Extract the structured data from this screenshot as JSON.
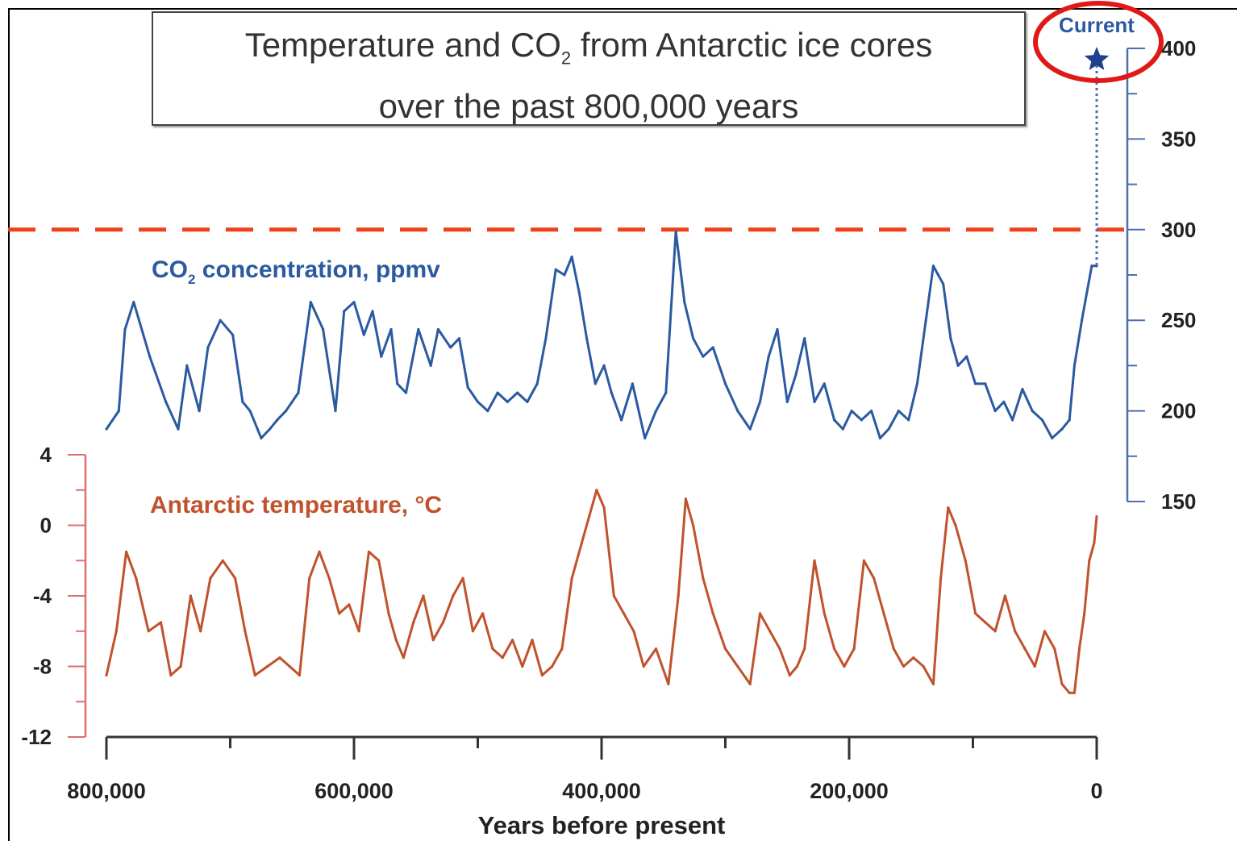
{
  "chart_data": {
    "type": "line",
    "title_line1": "Temperature and CO",
    "title_sub": "2",
    "title_line1_rest": " from Antarctic ice cores",
    "title_line2": "over the past 800,000 years",
    "xlabel": "Years before present",
    "x_ticks": [
      "800,000",
      "600,000",
      "400,000",
      "200,000",
      "0"
    ],
    "x_tick_values": [
      800000,
      600000,
      400000,
      200000,
      0
    ],
    "xlim": [
      800000,
      0
    ],
    "co2_label": "CO",
    "co2_label_sub": "2",
    "co2_label_rest": " concentration, ppmv",
    "temp_label": "Antarctic temperature, °C",
    "current_label": "Current",
    "current_value": 400,
    "y_right_ticks": [
      "400",
      "350",
      "300",
      "250",
      "200",
      "150"
    ],
    "y_right_values": [
      400,
      350,
      300,
      250,
      200,
      150
    ],
    "y_right_lim": [
      150,
      400
    ],
    "y_left_ticks": [
      "4",
      "0",
      "-4",
      "-8",
      "-12"
    ],
    "y_left_values": [
      4,
      0,
      -4,
      -8,
      -12
    ],
    "y_left_lim": [
      -12,
      4
    ],
    "threshold_line_value": 300,
    "series": [
      {
        "name": "CO2 concentration, ppmv",
        "x": [
          800000,
          790000,
          785000,
          778000,
          765000,
          752000,
          742000,
          735000,
          725000,
          718000,
          708000,
          698000,
          690000,
          684000,
          675000,
          668000,
          662000,
          655000,
          645000,
          635000,
          625000,
          615000,
          608000,
          600000,
          592000,
          585000,
          578000,
          570000,
          565000,
          558000,
          548000,
          538000,
          532000,
          522000,
          515000,
          508000,
          500000,
          492000,
          484000,
          476000,
          468000,
          460000,
          452000,
          445000,
          437000,
          430000,
          424000,
          418000,
          412000,
          405000,
          398000,
          392000,
          384000,
          375000,
          365000,
          356000,
          348000,
          340000,
          333000,
          326000,
          318000,
          310000,
          300000,
          290000,
          280000,
          272000,
          265000,
          258000,
          250000,
          243000,
          236000,
          228000,
          220000,
          212000,
          205000,
          198000,
          190000,
          182000,
          175000,
          168000,
          160000,
          152000,
          145000,
          138000,
          132000,
          128000,
          124000,
          118000,
          112000,
          105000,
          98000,
          90000,
          82000,
          75000,
          68000,
          60000,
          52000,
          44000,
          36000,
          28000,
          22000,
          18000,
          12000,
          8000,
          4000,
          0
        ],
        "values": [
          190,
          200,
          245,
          260,
          230,
          205,
          190,
          225,
          200,
          235,
          250,
          242,
          205,
          200,
          185,
          190,
          195,
          200,
          210,
          260,
          245,
          200,
          255,
          260,
          242,
          255,
          230,
          245,
          215,
          210,
          245,
          225,
          245,
          235,
          240,
          213,
          205,
          200,
          210,
          205,
          210,
          205,
          215,
          240,
          278,
          275,
          285,
          265,
          240,
          215,
          225,
          210,
          195,
          215,
          185,
          200,
          210,
          299,
          260,
          240,
          230,
          235,
          215,
          200,
          190,
          205,
          230,
          245,
          205,
          220,
          240,
          205,
          215,
          195,
          190,
          200,
          195,
          200,
          185,
          190,
          200,
          195,
          215,
          250,
          280,
          275,
          270,
          240,
          225,
          230,
          215,
          215,
          200,
          205,
          195,
          212,
          200,
          195,
          185,
          190,
          195,
          225,
          250,
          265,
          280,
          280
        ]
      },
      {
        "name": "Antarctic temperature, °C",
        "x": [
          800000,
          792000,
          784000,
          776000,
          766000,
          756000,
          748000,
          740000,
          732000,
          724000,
          716000,
          706000,
          696000,
          688000,
          680000,
          670000,
          660000,
          652000,
          644000,
          636000,
          628000,
          620000,
          612000,
          604000,
          596000,
          588000,
          580000,
          572000,
          566000,
          560000,
          552000,
          544000,
          536000,
          528000,
          520000,
          512000,
          504000,
          496000,
          488000,
          480000,
          472000,
          464000,
          456000,
          448000,
          440000,
          432000,
          424000,
          416000,
          410000,
          404000,
          398000,
          390000,
          382000,
          374000,
          366000,
          356000,
          346000,
          338000,
          332000,
          326000,
          318000,
          310000,
          300000,
          290000,
          280000,
          272000,
          264000,
          256000,
          248000,
          242000,
          236000,
          228000,
          220000,
          212000,
          204000,
          196000,
          188000,
          180000,
          172000,
          164000,
          156000,
          148000,
          140000,
          132000,
          126000,
          120000,
          114000,
          106000,
          98000,
          90000,
          82000,
          74000,
          66000,
          58000,
          50000,
          42000,
          34000,
          28000,
          22000,
          18000,
          14000,
          10000,
          6000,
          2000,
          0
        ],
        "values": [
          -8.5,
          -6,
          -1.5,
          -3,
          -6,
          -5.5,
          -8.5,
          -8,
          -4,
          -6,
          -3,
          -2,
          -3,
          -6,
          -8.5,
          -8,
          -7.5,
          -8,
          -8.5,
          -3,
          -1.5,
          -3,
          -5,
          -4.5,
          -6,
          -1.5,
          -2,
          -5,
          -6.5,
          -7.5,
          -5.5,
          -4,
          -6.5,
          -5.5,
          -4,
          -3,
          -6,
          -5,
          -7,
          -7.5,
          -6.5,
          -8,
          -6.5,
          -8.5,
          -8,
          -7,
          -3,
          -1,
          0.5,
          2,
          1,
          -4,
          -5,
          -6,
          -8,
          -7,
          -9,
          -4,
          1.5,
          0,
          -3,
          -5,
          -7,
          -8,
          -9,
          -5,
          -6,
          -7,
          -8.5,
          -8,
          -7,
          -2,
          -5,
          -7,
          -8,
          -7,
          -2,
          -3,
          -5,
          -7,
          -8,
          -7.5,
          -8,
          -9,
          -3,
          1,
          0,
          -2,
          -5,
          -5.5,
          -6,
          -4,
          -6,
          -7,
          -8,
          -6,
          -7,
          -9,
          -9.5,
          -9.5,
          -7,
          -5,
          -2,
          -1,
          0.5
        ]
      }
    ]
  },
  "colors": {
    "co2": "#2b5aa0",
    "temp": "#c0522c",
    "threshold": "#f0411a",
    "circle": "#e01818",
    "axis": "#333333",
    "right_axis": "#4a6fb0",
    "left_axis": "#e07070"
  }
}
